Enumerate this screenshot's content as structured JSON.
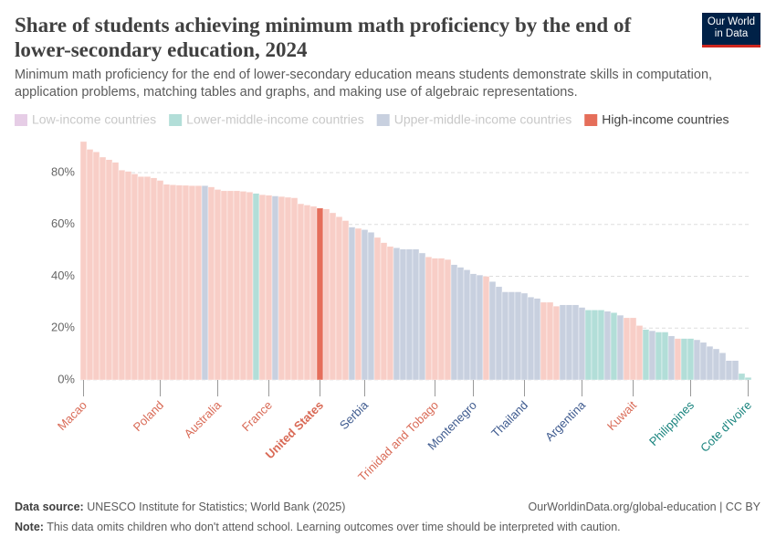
{
  "header": {
    "title": "Share of students achieving minimum math proficiency by the end of lower-secondary education, 2024",
    "subtitle": "Minimum math proficiency for the end of lower-secondary education means students demonstrate skills in computation, application problems, matching tables and graphs, and making use of algebraic representations.",
    "logo": "Our World in Data"
  },
  "chart_data": {
    "type": "bar",
    "series": [
      {
        "name": "Low-income countries",
        "color": "#a2559c",
        "faded_color": "#e6cde6",
        "label_color": "#a2559c"
      },
      {
        "name": "Lower-middle-income countries",
        "color": "#00847e",
        "faded_color": "#b2ded8",
        "label_color": "#18837d"
      },
      {
        "name": "Upper-middle-income countries",
        "color": "#4c6a9c",
        "faded_color": "#c8d0df",
        "label_color": "#3f5b8f"
      },
      {
        "name": "High-income countries",
        "color": "#e56e5a",
        "faded_color": "#f8cec7",
        "label_color": "#d96a56"
      }
    ],
    "active_series": 3,
    "highlight": 37,
    "categories": [
      "Macao",
      null,
      null,
      null,
      null,
      null,
      null,
      null,
      null,
      null,
      null,
      null,
      "Poland",
      null,
      null,
      null,
      null,
      null,
      null,
      null,
      null,
      "Australia",
      null,
      null,
      null,
      null,
      null,
      null,
      null,
      "France",
      null,
      null,
      null,
      null,
      null,
      null,
      null,
      "United States",
      null,
      null,
      null,
      null,
      null,
      null,
      "Serbia",
      null,
      null,
      null,
      null,
      null,
      null,
      null,
      null,
      null,
      null,
      "Trinidad and Tobago",
      null,
      null,
      null,
      null,
      null,
      "Montenegro",
      null,
      null,
      null,
      null,
      null,
      null,
      null,
      "Thailand",
      null,
      null,
      null,
      null,
      null,
      null,
      null,
      null,
      "Argentina",
      null,
      null,
      null,
      null,
      null,
      null,
      null,
      "Kuwait",
      null,
      null,
      null,
      null,
      null,
      null,
      null,
      null,
      "Philippines",
      null,
      null,
      null,
      null,
      null,
      null,
      null,
      null,
      "Cote d'Ivoire"
    ],
    "values": [
      92,
      89,
      88,
      86,
      85,
      84,
      81,
      80.5,
      79.5,
      78.5,
      78.5,
      78,
      77,
      75.5,
      75.3,
      75.2,
      75.1,
      75,
      75,
      75,
      74.5,
      73.5,
      73,
      73,
      73,
      72.8,
      72.5,
      72,
      71.5,
      71.3,
      71,
      70.8,
      70.5,
      70.3,
      68,
      67.5,
      67,
      66.3,
      66,
      64.5,
      63,
      61.5,
      59,
      58.5,
      58,
      57,
      55,
      53,
      51.5,
      51,
      50.5,
      50.5,
      50.5,
      49,
      47.5,
      47,
      47,
      46.5,
      44.5,
      43.5,
      42.5,
      41,
      40.5,
      40,
      38,
      36,
      34,
      34,
      34,
      33.5,
      32,
      31.5,
      30,
      30,
      28.5,
      29,
      29,
      29,
      28,
      27,
      27,
      27,
      26.5,
      26,
      25,
      24,
      24,
      21,
      19.5,
      19,
      18.5,
      18.5,
      17,
      16,
      16,
      16,
      15.5,
      14.5,
      13,
      12,
      10.5,
      7.5,
      7.5,
      2.5,
      1
    ],
    "groups": [
      3,
      3,
      3,
      3,
      3,
      3,
      3,
      3,
      3,
      3,
      3,
      3,
      3,
      3,
      3,
      3,
      3,
      3,
      3,
      2,
      3,
      3,
      3,
      3,
      3,
      3,
      3,
      1,
      3,
      3,
      2,
      3,
      3,
      3,
      3,
      3,
      3,
      3,
      3,
      3,
      3,
      3,
      2,
      3,
      2,
      2,
      3,
      3,
      3,
      2,
      2,
      2,
      2,
      2,
      3,
      3,
      3,
      3,
      2,
      2,
      2,
      2,
      2,
      3,
      2,
      2,
      2,
      2,
      2,
      2,
      2,
      2,
      3,
      3,
      3,
      2,
      2,
      2,
      2,
      1,
      1,
      1,
      2,
      1,
      2,
      3,
      3,
      3,
      1,
      2,
      1,
      1,
      2,
      3,
      1,
      1,
      2,
      2,
      2,
      2,
      2,
      2,
      2,
      1,
      1
    ],
    "ylim": [
      0,
      100
    ],
    "yticks": [
      {
        "value": 0,
        "label": "0%"
      },
      {
        "value": 20,
        "label": "20%"
      },
      {
        "value": 40,
        "label": "40%"
      },
      {
        "value": 60,
        "label": "60%"
      },
      {
        "value": 80,
        "label": "80%"
      }
    ],
    "grid": true
  },
  "footer": {
    "source_label": "Data source:",
    "source": "UNESCO Institute for Statistics; World Bank (2025)",
    "url": "OurWorldinData.org/global-education | CC BY",
    "note_label": "Note:",
    "note": "This data omits children who don't attend school. Learning outcomes over time should be interpreted with caution."
  }
}
